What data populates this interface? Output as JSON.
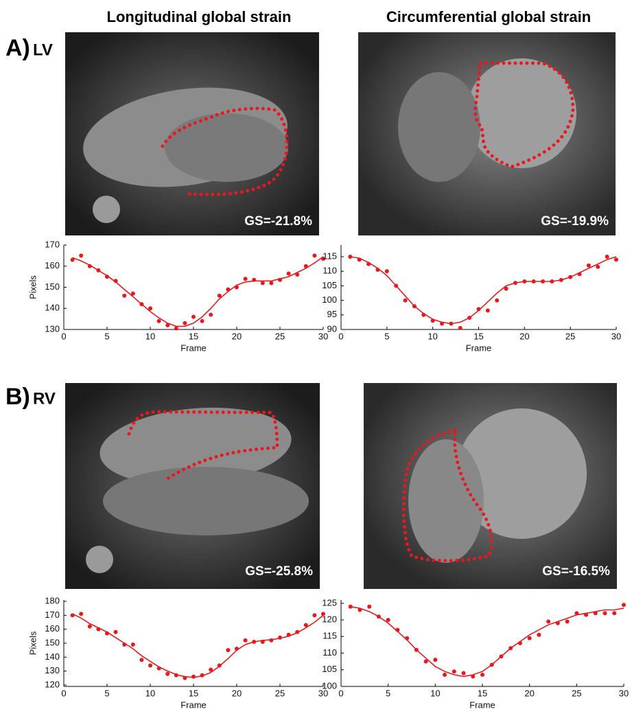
{
  "column_titles": [
    "Longitudinal global strain",
    "Circumferential global strain"
  ],
  "rows": [
    {
      "letter": "A)",
      "chamber": "LV",
      "strain_labels": [
        "GS=-21.8%",
        "GS=-19.9%"
      ]
    },
    {
      "letter": "B)",
      "chamber": "RV",
      "strain_labels": [
        "GS=-25.8%",
        "GS=-16.5%"
      ]
    }
  ],
  "chart_data": [
    {
      "type": "scatter",
      "xlabel": "Frame",
      "ylabel": "Pixels",
      "x": [
        1,
        2,
        3,
        4,
        5,
        6,
        7,
        8,
        9,
        10,
        11,
        12,
        13,
        14,
        15,
        16,
        17,
        18,
        19,
        20,
        21,
        22,
        23,
        24,
        25,
        26,
        27,
        28,
        29,
        30
      ],
      "xlim": [
        0,
        30
      ],
      "xticks": [
        0,
        5,
        10,
        15,
        20,
        25,
        30
      ],
      "ylim": [
        130,
        170
      ],
      "yticks": [
        130,
        140,
        150,
        160,
        170
      ],
      "series": [
        {
          "mode": "markers",
          "color": "#e8181c",
          "values": [
            163,
            165,
            160,
            158,
            155,
            153,
            146,
            147,
            142,
            140,
            134,
            132,
            130.5,
            133,
            136,
            134,
            137,
            146,
            149,
            150,
            154,
            153.5,
            152,
            152,
            153.5,
            156.5,
            156,
            160,
            165,
            163.5
          ]
        },
        {
          "mode": "line",
          "color": "#e8181c",
          "values": [
            164,
            162.5,
            160.5,
            158,
            155.5,
            152.5,
            149,
            145.5,
            142,
            138.5,
            135.5,
            133,
            131.5,
            131.5,
            133,
            136,
            140,
            144.5,
            148,
            151,
            152.5,
            153,
            153,
            153,
            154,
            155,
            157,
            159,
            161.5,
            164.5
          ]
        }
      ]
    },
    {
      "type": "scatter",
      "xlabel": "Frame",
      "x": [
        1,
        2,
        3,
        4,
        5,
        6,
        7,
        8,
        9,
        10,
        11,
        12,
        13,
        14,
        15,
        16,
        17,
        18,
        19,
        20,
        21,
        22,
        23,
        24,
        25,
        26,
        27,
        28,
        29,
        30
      ],
      "xlim": [
        0,
        30
      ],
      "xticks": [
        0,
        5,
        10,
        15,
        20,
        25,
        30
      ],
      "ylim": [
        90,
        119
      ],
      "yticks": [
        90,
        95,
        100,
        105,
        110,
        115
      ],
      "series": [
        {
          "mode": "markers",
          "color": "#e8181c",
          "values": [
            115,
            114,
            112.5,
            110.5,
            110,
            105,
            100,
            98,
            95,
            93,
            92,
            92,
            90.5,
            94,
            97,
            96.5,
            100,
            104,
            106,
            106.5,
            106.5,
            106.5,
            106.5,
            107,
            108,
            109,
            112,
            111.5,
            115,
            114
          ]
        },
        {
          "mode": "line",
          "color": "#e8181c",
          "values": [
            115,
            114.5,
            113,
            111,
            108.5,
            105,
            101.5,
            98,
            95.5,
            93.5,
            92.5,
            92,
            92.5,
            94,
            96.5,
            99.5,
            102.5,
            105,
            106,
            106.5,
            106.5,
            106.5,
            106.5,
            107,
            108,
            109.5,
            111,
            112.5,
            114,
            115
          ]
        }
      ]
    },
    {
      "type": "scatter",
      "xlabel": "Frame",
      "ylabel": "Pixels",
      "x": [
        1,
        2,
        3,
        4,
        5,
        6,
        7,
        8,
        9,
        10,
        11,
        12,
        13,
        14,
        15,
        16,
        17,
        18,
        19,
        20,
        21,
        22,
        23,
        24,
        25,
        26,
        27,
        28,
        29,
        30
      ],
      "xlim": [
        0,
        30
      ],
      "xticks": [
        0,
        5,
        10,
        15,
        20,
        25,
        30
      ],
      "ylim": [
        119,
        181
      ],
      "yticks": [
        120,
        130,
        140,
        150,
        160,
        170,
        180
      ],
      "series": [
        {
          "mode": "markers",
          "color": "#e8181c",
          "values": [
            170,
            171,
            162,
            160,
            157,
            158,
            149,
            149,
            138,
            134,
            132,
            128,
            127,
            125,
            126,
            127,
            131,
            134,
            145,
            146,
            152,
            151,
            151,
            152,
            154,
            156,
            158,
            163,
            170,
            171
          ]
        },
        {
          "mode": "line",
          "color": "#e8181c",
          "values": [
            171,
            168,
            164,
            161,
            158,
            154,
            150,
            146,
            141,
            137,
            133,
            130,
            127.5,
            126,
            125.5,
            126.5,
            129,
            133.5,
            139,
            145,
            149,
            151,
            152,
            152.5,
            153.5,
            155,
            157.5,
            161,
            165,
            170
          ]
        }
      ]
    },
    {
      "type": "scatter",
      "xlabel": "Frame",
      "x": [
        1,
        2,
        3,
        4,
        5,
        6,
        7,
        8,
        9,
        10,
        11,
        12,
        13,
        14,
        15,
        16,
        17,
        18,
        19,
        20,
        21,
        22,
        23,
        24,
        25,
        26,
        27,
        28,
        29,
        30
      ],
      "xlim": [
        0,
        30
      ],
      "xticks": [
        0,
        5,
        10,
        15,
        20,
        25,
        30
      ],
      "ylim": [
        100,
        126
      ],
      "yticks": [
        100,
        105,
        110,
        115,
        120,
        125
      ],
      "series": [
        {
          "mode": "markers",
          "color": "#e8181c",
          "values": [
            124,
            123,
            124,
            121,
            120,
            117,
            114.5,
            111,
            107.5,
            108,
            103.5,
            104.5,
            104,
            103,
            103.5,
            106.5,
            109,
            111.5,
            113,
            114.5,
            115.5,
            119.5,
            119,
            119.5,
            122,
            121.5,
            122,
            122,
            122,
            124.5
          ]
        },
        {
          "mode": "line",
          "color": "#e8181c",
          "values": [
            124,
            123.5,
            122.5,
            121,
            119,
            116.5,
            114,
            111,
            108.5,
            106,
            104.5,
            103.5,
            103,
            103.5,
            104.5,
            106.5,
            109,
            111.5,
            113.5,
            115.5,
            117,
            118.5,
            119.5,
            120.5,
            121.5,
            122,
            122.5,
            123,
            123,
            123.5
          ]
        }
      ]
    }
  ]
}
